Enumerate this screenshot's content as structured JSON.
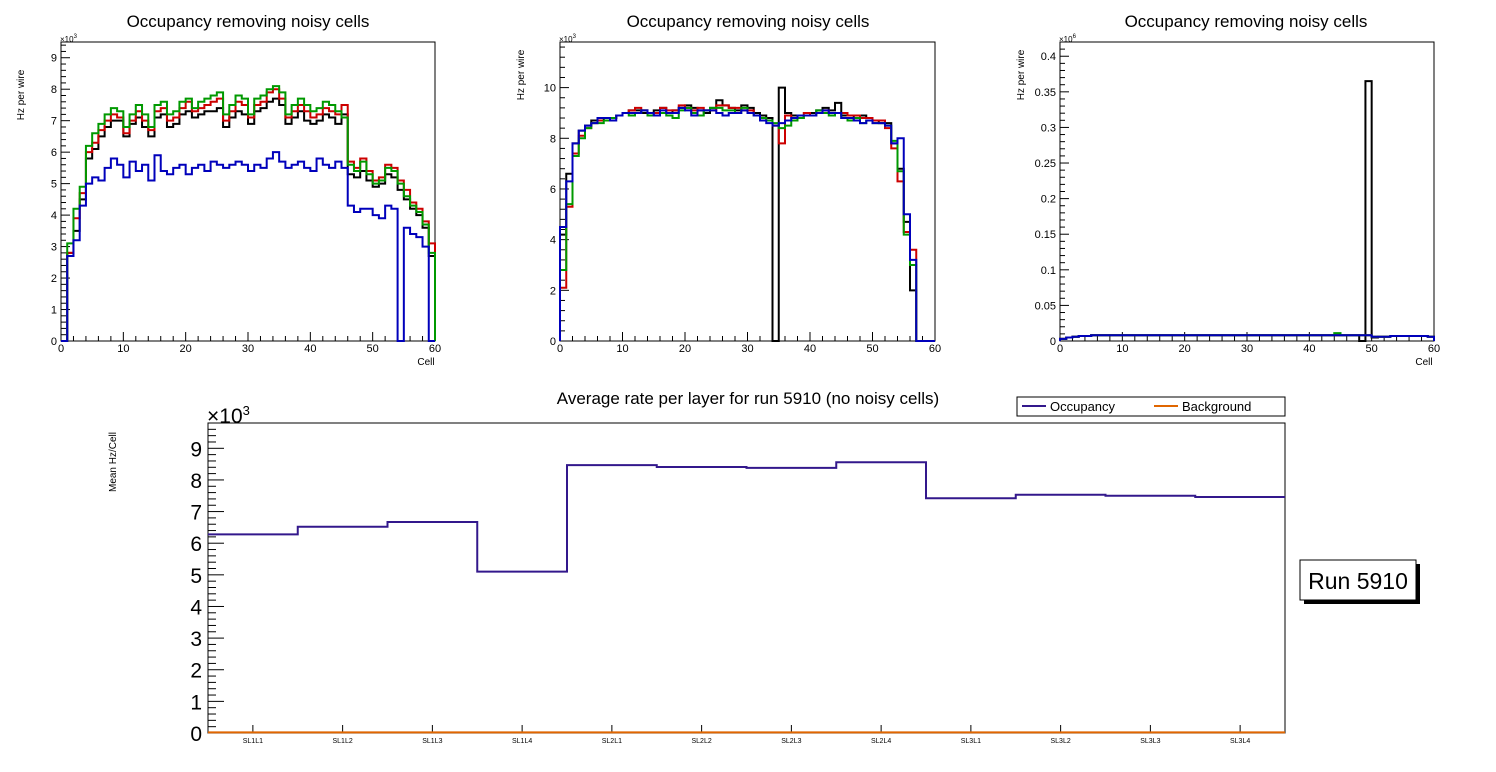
{
  "chart_data": [
    {
      "type": "line",
      "title": "Occupancy removing noisy cells",
      "xlabel": "Cell",
      "ylabel": "Hz per wire",
      "y_multiplier": "×10",
      "y_multiplier_exp": "3",
      "xlim": [
        0,
        60
      ],
      "ylim": [
        0,
        9.5
      ],
      "xticks": [
        "0",
        "10",
        "20",
        "30",
        "40",
        "50",
        "60"
      ],
      "yticks": [
        "0",
        "1",
        "2",
        "3",
        "4",
        "5",
        "6",
        "7",
        "8",
        "9"
      ],
      "series": [
        {
          "name": "black",
          "color": "#000000",
          "values": [
            0,
            2.8,
            3.5,
            4.5,
            5.8,
            6.1,
            6.5,
            6.8,
            7.0,
            7.0,
            6.5,
            6.9,
            7.1,
            6.8,
            6.5,
            7.1,
            7.2,
            6.8,
            6.9,
            7.2,
            7.3,
            7.1,
            7.2,
            7.3,
            7.3,
            7.4,
            6.8,
            7.1,
            7.3,
            7.2,
            6.9,
            7.3,
            7.4,
            7.6,
            7.7,
            7.5,
            6.9,
            7.1,
            7.3,
            7.0,
            6.9,
            7.0,
            7.2,
            7.1,
            6.9,
            7.2,
            5.3,
            5.2,
            5.4,
            5.1,
            4.9,
            5.0,
            5.3,
            5.2,
            4.8,
            4.5,
            4.2,
            4.0,
            3.6,
            2.7
          ]
        },
        {
          "name": "red",
          "color": "#cc0000",
          "values": [
            0,
            2.8,
            3.9,
            4.7,
            6.0,
            6.3,
            6.7,
            7.0,
            7.2,
            7.1,
            6.6,
            7.0,
            7.3,
            7.0,
            6.7,
            7.3,
            7.4,
            7.0,
            7.1,
            7.4,
            7.6,
            7.3,
            7.4,
            7.5,
            7.6,
            7.7,
            7.0,
            7.3,
            7.6,
            7.5,
            7.1,
            7.5,
            7.6,
            7.9,
            8.0,
            7.7,
            7.1,
            7.3,
            7.5,
            7.3,
            7.1,
            7.2,
            7.4,
            7.3,
            7.2,
            7.5,
            5.7,
            5.5,
            5.8,
            5.4,
            5.1,
            5.2,
            5.6,
            5.5,
            5.1,
            4.8,
            4.4,
            4.2,
            3.8,
            3.1
          ]
        },
        {
          "name": "green",
          "color": "#009900",
          "values": [
            0,
            3.1,
            4.2,
            4.9,
            6.2,
            6.6,
            6.9,
            7.2,
            7.4,
            7.3,
            6.8,
            7.2,
            7.5,
            7.2,
            6.8,
            7.5,
            7.6,
            7.2,
            7.3,
            7.6,
            7.7,
            7.4,
            7.6,
            7.7,
            7.8,
            7.9,
            7.2,
            7.5,
            7.8,
            7.7,
            7.2,
            7.7,
            7.8,
            8.0,
            8.1,
            7.9,
            7.2,
            7.5,
            7.7,
            7.5,
            7.3,
            7.4,
            7.6,
            7.5,
            7.3,
            7.1,
            5.6,
            5.4,
            5.7,
            5.3,
            5.0,
            5.1,
            5.5,
            5.4,
            5.0,
            4.6,
            4.3,
            4.1,
            3.7,
            2.8
          ]
        },
        {
          "name": "blue",
          "color": "#0000bb",
          "values": [
            0,
            2.7,
            3.2,
            4.3,
            5.0,
            5.2,
            5.1,
            5.5,
            5.8,
            5.6,
            5.2,
            5.7,
            5.4,
            5.6,
            5.1,
            5.9,
            5.4,
            5.3,
            5.5,
            5.6,
            5.3,
            5.5,
            5.6,
            5.4,
            5.7,
            5.6,
            5.5,
            5.6,
            5.7,
            5.6,
            5.4,
            5.6,
            5.5,
            5.8,
            6.0,
            5.7,
            5.5,
            5.6,
            5.7,
            5.5,
            5.4,
            5.8,
            5.6,
            5.5,
            5.7,
            5.5,
            4.3,
            4.1,
            4.2,
            4.2,
            4.0,
            3.9,
            4.3,
            4.2,
            0,
            3.6,
            3.4,
            3.3,
            3.0,
            0
          ]
        }
      ]
    },
    {
      "type": "line",
      "title": "Occupancy removing noisy cells",
      "xlabel": "",
      "ylabel": "Hz per wire",
      "y_multiplier": "×10",
      "y_multiplier_exp": "3",
      "xlim": [
        0,
        60
      ],
      "ylim": [
        0,
        11.8
      ],
      "xticks": [
        "0",
        "10",
        "20",
        "30",
        "40",
        "50",
        "60"
      ],
      "yticks": [
        "0",
        "2",
        "4",
        "6",
        "8",
        "10"
      ],
      "series": [
        {
          "name": "black",
          "color": "#000000",
          "values": [
            4.2,
            6.6,
            7.8,
            8.3,
            8.5,
            8.7,
            8.7,
            8.8,
            8.8,
            8.9,
            9.0,
            9.1,
            9.1,
            9.0,
            8.9,
            9.1,
            9.2,
            9.0,
            9.1,
            9.2,
            9.3,
            9.2,
            9.1,
            9.0,
            9.2,
            9.5,
            9.3,
            9.2,
            9.1,
            9.3,
            9.2,
            9.0,
            8.9,
            8.8,
            0,
            10.0,
            9.0,
            8.9,
            8.8,
            8.9,
            9.0,
            9.1,
            9.2,
            9.1,
            9.4,
            8.9,
            8.9,
            8.8,
            8.9,
            8.8,
            8.7,
            8.6,
            8.6,
            7.8,
            6.8,
            4.7,
            2.0,
            0,
            0,
            0
          ]
        },
        {
          "name": "red",
          "color": "#cc0000",
          "values": [
            2.1,
            5.3,
            7.4,
            8.1,
            8.4,
            8.6,
            8.7,
            8.7,
            8.8,
            8.9,
            9.0,
            9.1,
            9.2,
            9.1,
            9.0,
            9.0,
            9.2,
            9.1,
            9.1,
            9.3,
            9.2,
            9.1,
            9.2,
            9.1,
            9.1,
            9.3,
            9.3,
            9.2,
            9.2,
            9.1,
            9.1,
            8.9,
            8.8,
            8.7,
            8.5,
            7.8,
            8.9,
            8.8,
            8.9,
            9.0,
            8.9,
            9.0,
            9.1,
            9.0,
            9.0,
            9.0,
            8.9,
            8.9,
            8.8,
            8.8,
            8.7,
            8.7,
            8.4,
            7.6,
            6.3,
            4.3,
            3.6,
            0,
            0,
            0
          ]
        },
        {
          "name": "green",
          "color": "#009900",
          "values": [
            2.8,
            5.4,
            7.3,
            8.0,
            8.4,
            8.6,
            8.6,
            8.7,
            8.8,
            8.9,
            9.0,
            8.9,
            9.0,
            9.1,
            8.9,
            8.9,
            9.0,
            8.9,
            8.8,
            9.1,
            9.2,
            9.0,
            8.9,
            9.1,
            9.2,
            9.2,
            9.1,
            9.1,
            9.0,
            9.2,
            9.0,
            8.9,
            8.8,
            8.7,
            8.6,
            8.4,
            8.5,
            8.7,
            8.8,
            8.9,
            8.9,
            9.1,
            9.0,
            8.9,
            9.0,
            8.8,
            8.7,
            8.8,
            8.6,
            8.7,
            8.6,
            8.6,
            8.5,
            7.9,
            6.7,
            4.2,
            3.0,
            0,
            0,
            0
          ]
        },
        {
          "name": "blue",
          "color": "#0000bb",
          "values": [
            4.5,
            6.3,
            7.8,
            8.3,
            8.5,
            8.6,
            8.8,
            8.8,
            8.7,
            8.9,
            9.0,
            9.0,
            9.0,
            9.1,
            9.0,
            8.9,
            9.1,
            9.0,
            9.0,
            9.2,
            9.1,
            8.9,
            9.1,
            9.1,
            9.1,
            9.0,
            8.9,
            9.0,
            9.0,
            9.1,
            9.0,
            8.9,
            8.7,
            8.6,
            8.5,
            8.6,
            8.7,
            8.8,
            8.9,
            8.9,
            8.9,
            9.0,
            9.1,
            9.0,
            9.0,
            8.8,
            8.8,
            8.7,
            8.6,
            8.7,
            8.6,
            8.6,
            8.5,
            7.8,
            8.0,
            5.0,
            3.2,
            0,
            0,
            0
          ]
        }
      ]
    },
    {
      "type": "line",
      "title": "Occupancy removing noisy cells",
      "xlabel": "Cell",
      "ylabel": "Hz per wire",
      "y_multiplier": "×10",
      "y_multiplier_exp": "6",
      "xlim": [
        0,
        60
      ],
      "ylim": [
        0,
        0.42
      ],
      "xticks": [
        "0",
        "10",
        "20",
        "30",
        "40",
        "50",
        "60"
      ],
      "yticks": [
        "0",
        "0.05",
        "0.1",
        "0.15",
        "0.2",
        "0.25",
        "0.3",
        "0.35",
        "0.4"
      ],
      "series": [
        {
          "name": "black",
          "color": "#000000",
          "values": [
            0.003,
            0.005,
            0.006,
            0.007,
            0.007,
            0.008,
            0.008,
            0.008,
            0.008,
            0.008,
            0.008,
            0.008,
            0.008,
            0.008,
            0.008,
            0.008,
            0.008,
            0.008,
            0.008,
            0.008,
            0.008,
            0.008,
            0.008,
            0.008,
            0.008,
            0.008,
            0.008,
            0.008,
            0.008,
            0.008,
            0.008,
            0.008,
            0.008,
            0.008,
            0.008,
            0.008,
            0.008,
            0.008,
            0.008,
            0.008,
            0.008,
            0.008,
            0.008,
            0.008,
            0.008,
            0.008,
            0.008,
            0.008,
            0,
            0.365,
            0.005,
            0.006,
            0.006,
            0.007,
            0.007,
            0.007,
            0.007,
            0.007,
            0.007,
            0.006
          ]
        },
        {
          "name": "red",
          "color": "#cc0000",
          "values": [
            0.003,
            0.005,
            0.006,
            0.007,
            0.007,
            0.008,
            0.008,
            0.008,
            0.008,
            0.008,
            0.008,
            0.008,
            0.008,
            0.008,
            0.008,
            0.008,
            0.008,
            0.008,
            0.008,
            0.008,
            0.008,
            0.008,
            0.008,
            0.008,
            0.008,
            0.008,
            0.008,
            0.008,
            0.008,
            0.008,
            0.008,
            0.008,
            0.008,
            0.008,
            0.008,
            0.008,
            0.008,
            0.008,
            0.008,
            0.008,
            0.008,
            0.008,
            0.008,
            0.008,
            0.008,
            0.008,
            0.008,
            0.008,
            0.008,
            0.008,
            0.006,
            0.006,
            0.006,
            0.007,
            0.007,
            0.007,
            0.007,
            0.007,
            0.007,
            0.006
          ]
        },
        {
          "name": "green",
          "color": "#009900",
          "values": [
            0.003,
            0.005,
            0.006,
            0.007,
            0.007,
            0.008,
            0.008,
            0.008,
            0.008,
            0.008,
            0.008,
            0.008,
            0.008,
            0.008,
            0.008,
            0.008,
            0.008,
            0.008,
            0.008,
            0.008,
            0.008,
            0.008,
            0.008,
            0.008,
            0.008,
            0.008,
            0.008,
            0.008,
            0.008,
            0.008,
            0.008,
            0.008,
            0.008,
            0.008,
            0.008,
            0.008,
            0.008,
            0.008,
            0.008,
            0.008,
            0.008,
            0.008,
            0.008,
            0.008,
            0.011,
            0.008,
            0.008,
            0.008,
            0.008,
            0.008,
            0.006,
            0.006,
            0.006,
            0.007,
            0.007,
            0.007,
            0.007,
            0.007,
            0.007,
            0.006
          ]
        },
        {
          "name": "blue",
          "color": "#0000bb",
          "values": [
            0.003,
            0.005,
            0.006,
            0.007,
            0.007,
            0.008,
            0.008,
            0.008,
            0.008,
            0.008,
            0.008,
            0.008,
            0.008,
            0.008,
            0.008,
            0.008,
            0.008,
            0.008,
            0.008,
            0.008,
            0.008,
            0.008,
            0.008,
            0.008,
            0.008,
            0.008,
            0.008,
            0.008,
            0.008,
            0.008,
            0.008,
            0.008,
            0.008,
            0.008,
            0.008,
            0.008,
            0.008,
            0.008,
            0.008,
            0.008,
            0.008,
            0.008,
            0.008,
            0.008,
            0.008,
            0.008,
            0.008,
            0.008,
            0.008,
            0.008,
            0.006,
            0.006,
            0.006,
            0.007,
            0.007,
            0.007,
            0.007,
            0.007,
            0.007,
            0.006
          ]
        }
      ]
    },
    {
      "type": "line",
      "title": "Average rate per layer for run 5910 (no noisy cells)",
      "xlabel": "",
      "ylabel": "Mean Hz/Cell",
      "y_multiplier": "×10",
      "y_multiplier_exp": "3",
      "ylim": [
        0,
        9.8
      ],
      "yticks": [
        "0",
        "1",
        "2",
        "3",
        "4",
        "5",
        "6",
        "7",
        "8",
        "9"
      ],
      "categories": [
        "SL1L1",
        "SL1L2",
        "SL1L3",
        "SL1L4",
        "SL2L1",
        "SL2L2",
        "SL2L3",
        "SL2L4",
        "SL3L1",
        "SL3L2",
        "SL3L3",
        "SL3L4"
      ],
      "legend": "top-right",
      "series": [
        {
          "name": "Occupancy",
          "color": "#33188c",
          "values": [
            6.28,
            6.52,
            6.67,
            5.1,
            8.47,
            8.41,
            8.38,
            8.56,
            7.42,
            7.53,
            7.5,
            7.46
          ]
        },
        {
          "name": "Background",
          "color": "#e06600",
          "values": [
            0.02,
            0.02,
            0.02,
            0.02,
            0.02,
            0.02,
            0.02,
            0.02,
            0.02,
            0.02,
            0.02,
            0.02
          ]
        }
      ],
      "label_box": "Run 5910"
    }
  ]
}
